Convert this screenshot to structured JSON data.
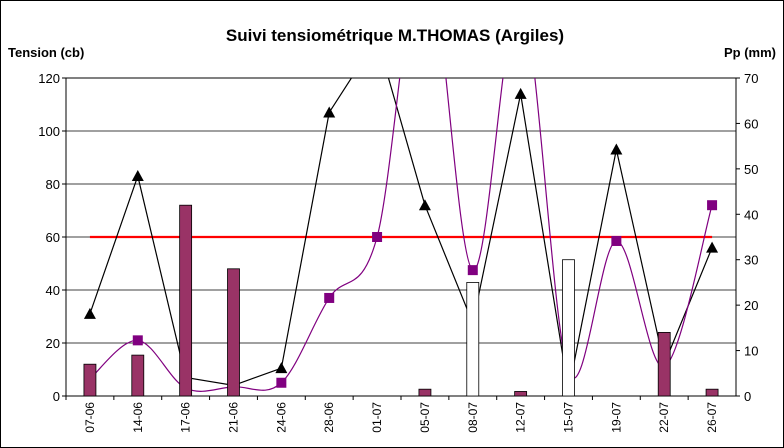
{
  "chart_data": {
    "type": "combo",
    "title": "Suivi tensiométrique M.THOMAS (Argiles)",
    "y_label": "Tension (cb)",
    "y2_label": "Pp (mm)",
    "categories": [
      "07-06",
      "14-06",
      "17-06",
      "21-06",
      "24-06",
      "28-06",
      "01-07",
      "05-07",
      "08-07",
      "12-07",
      "15-07",
      "19-07",
      "22-07",
      "26-07"
    ],
    "ylim": [
      0,
      120
    ],
    "yticks": [
      0,
      20,
      40,
      60,
      80,
      100,
      120
    ],
    "y2lim": [
      0,
      70
    ],
    "y2ticks": [
      0,
      10,
      20,
      30,
      40,
      50,
      60,
      70
    ],
    "grid": true,
    "series": [
      {
        "type": "bar",
        "axis": "y2",
        "color": "#993366",
        "values": [
          7,
          9,
          42,
          28,
          null,
          null,
          null,
          1.5,
          null,
          1,
          null,
          null,
          14,
          1.5
        ]
      },
      {
        "type": "bar",
        "axis": "y2",
        "color": "#ffffff",
        "values": [
          null,
          null,
          null,
          null,
          null,
          null,
          null,
          null,
          25,
          null,
          30,
          null,
          null,
          null
        ]
      },
      {
        "type": "line",
        "color": "#ff0000",
        "values": [
          60,
          60,
          60,
          60,
          60,
          60,
          60,
          60,
          60,
          60,
          60,
          60,
          60,
          60
        ]
      },
      {
        "type": "line",
        "color": "#000000",
        "marker": "triangle",
        "values": [
          31,
          83,
          7,
          4,
          10.5,
          107,
          135,
          72,
          27.5,
          114,
          2,
          93,
          12,
          56
        ]
      },
      {
        "type": "line",
        "color": "#800080",
        "marker": "square",
        "smooth": true,
        "values": [
          6.5,
          21,
          3,
          3.5,
          5,
          37,
          60,
          170,
          47.5,
          150,
          9,
          58.5,
          11,
          72
        ]
      }
    ]
  }
}
